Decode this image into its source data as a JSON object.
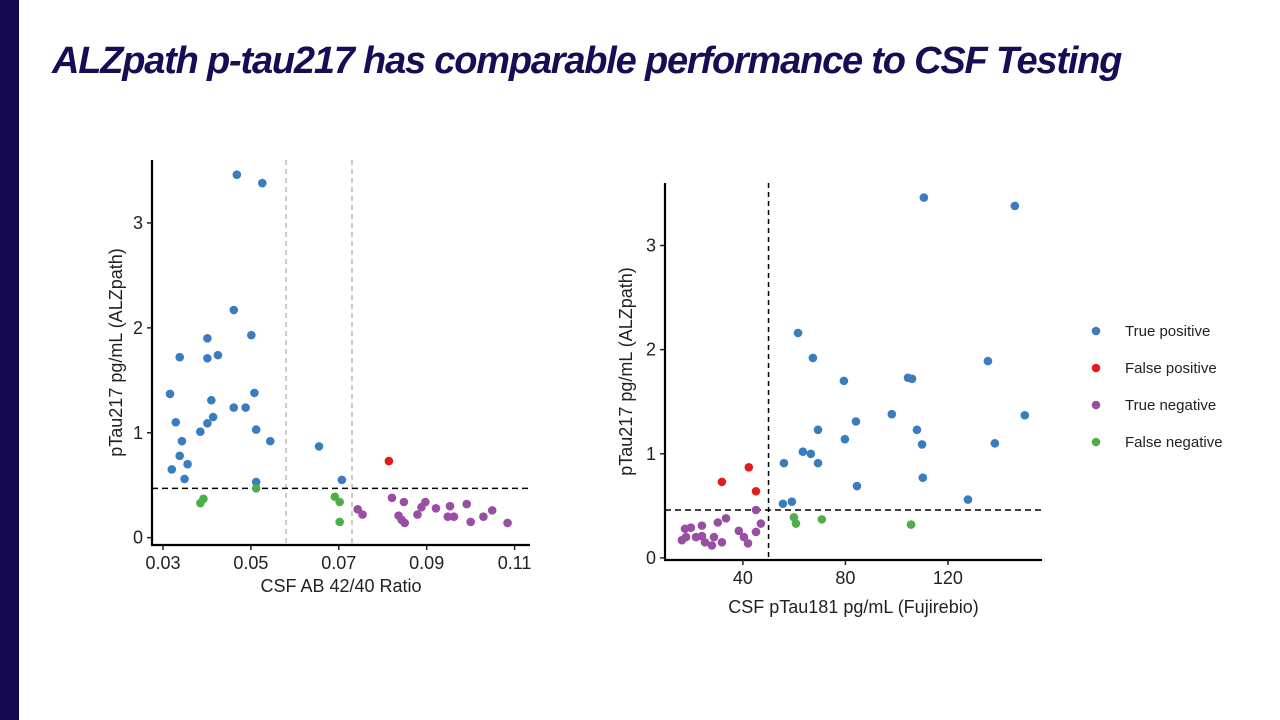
{
  "slide": {
    "title": "ALZpath p-tau217 has comparable performance  to CSF Testing"
  },
  "colors": {
    "bar": "#160a50",
    "title": "#170d55"
  },
  "legend": [
    {
      "label": "True positive",
      "color": "#3a7dbf"
    },
    {
      "label": "False positive",
      "color": "#e41a1c"
    },
    {
      "label": "True negative",
      "color": "#984ea3"
    },
    {
      "label": "False negative",
      "color": "#4daf4a"
    }
  ],
  "chart_data": [
    {
      "type": "scatter",
      "xlabel": "CSF AB 42/40 Ratio",
      "ylabel": "pTau217 pg/mL (ALZpath)",
      "xlim": [
        0.0275,
        0.1135
      ],
      "ylim": [
        -0.07,
        3.6
      ],
      "xticks": [
        "0.03",
        "0.05",
        "0.07",
        "0.09",
        "0.11"
      ],
      "xtick_values": [
        0.03,
        0.05,
        0.07,
        0.09,
        0.11
      ],
      "yticks": [
        "0",
        "1",
        "2",
        "3"
      ],
      "ytick_values": [
        0,
        1,
        2,
        3
      ],
      "hlines": [
        {
          "y": 0.47,
          "style": "dashed",
          "color": "#000000"
        }
      ],
      "vlines": [
        {
          "x": 0.058,
          "style": "dashed",
          "color": "#bbbbbb"
        },
        {
          "x": 0.073,
          "style": "dashed",
          "color": "#bbbbbb"
        }
      ],
      "series": [
        {
          "name": "True positive",
          "points": [
            [
              0.0468,
              3.46
            ],
            [
              0.0526,
              3.38
            ],
            [
              0.0461,
              2.17
            ],
            [
              0.0501,
              1.93
            ],
            [
              0.0401,
              1.9
            ],
            [
              0.0338,
              1.72
            ],
            [
              0.0401,
              1.71
            ],
            [
              0.0425,
              1.74
            ],
            [
              0.0316,
              1.37
            ],
            [
              0.0508,
              1.38
            ],
            [
              0.041,
              1.31
            ],
            [
              0.0461,
              1.24
            ],
            [
              0.0488,
              1.24
            ],
            [
              0.0414,
              1.15
            ],
            [
              0.0329,
              1.1
            ],
            [
              0.0401,
              1.09
            ],
            [
              0.0385,
              1.01
            ],
            [
              0.0512,
              1.03
            ],
            [
              0.0343,
              0.92
            ],
            [
              0.0544,
              0.92
            ],
            [
              0.0338,
              0.78
            ],
            [
              0.0356,
              0.7
            ],
            [
              0.032,
              0.65
            ],
            [
              0.0349,
              0.56
            ],
            [
              0.0512,
              0.53
            ],
            [
              0.0655,
              0.87
            ],
            [
              0.0707,
              0.55
            ]
          ]
        },
        {
          "name": "False positive",
          "points": [
            [
              0.0814,
              0.73
            ]
          ]
        },
        {
          "name": "True negative",
          "points": [
            [
              0.0743,
              0.27
            ],
            [
              0.0754,
              0.22
            ],
            [
              0.0821,
              0.38
            ],
            [
              0.0848,
              0.34
            ],
            [
              0.0836,
              0.21
            ],
            [
              0.0843,
              0.17
            ],
            [
              0.085,
              0.14
            ],
            [
              0.0879,
              0.22
            ],
            [
              0.0888,
              0.29
            ],
            [
              0.0897,
              0.34
            ],
            [
              0.0921,
              0.28
            ],
            [
              0.0953,
              0.3
            ],
            [
              0.0948,
              0.2
            ],
            [
              0.0962,
              0.2
            ],
            [
              0.0991,
              0.32
            ],
            [
              0.1,
              0.15
            ],
            [
              0.1029,
              0.2
            ],
            [
              0.1049,
              0.26
            ],
            [
              0.1084,
              0.14
            ]
          ]
        },
        {
          "name": "False negative",
          "points": [
            [
              0.0392,
              0.37
            ],
            [
              0.0385,
              0.33
            ],
            [
              0.0512,
              0.47
            ],
            [
              0.0691,
              0.39
            ],
            [
              0.0702,
              0.34
            ],
            [
              0.0702,
              0.15
            ]
          ]
        }
      ]
    },
    {
      "type": "scatter",
      "xlabel": "CSF pTau181 pg/mL (Fujirebio)",
      "ylabel": "pTau217 pg/mL (ALZpath)",
      "xlim": [
        9.6,
        156.7
      ],
      "ylim": [
        -0.02,
        3.6
      ],
      "xticks": [
        "40",
        "80",
        "120"
      ],
      "xtick_values": [
        40,
        80,
        120
      ],
      "yticks": [
        "0",
        "1",
        "2",
        "3"
      ],
      "ytick_values": [
        0,
        1,
        2,
        3
      ],
      "hlines": [
        {
          "y": 0.46,
          "style": "dashed",
          "color": "#000000"
        }
      ],
      "vlines": [
        {
          "x": 50,
          "style": "dashed",
          "color": "#000000"
        }
      ],
      "series": [
        {
          "name": "True positive",
          "points": [
            [
              110.6,
              3.46
            ],
            [
              146.1,
              3.38
            ],
            [
              61.5,
              2.16
            ],
            [
              67.3,
              1.92
            ],
            [
              135.6,
              1.89
            ],
            [
              79.4,
              1.7
            ],
            [
              104.4,
              1.73
            ],
            [
              106,
              1.72
            ],
            [
              98.1,
              1.38
            ],
            [
              150,
              1.37
            ],
            [
              84.1,
              1.31
            ],
            [
              69.3,
              1.23
            ],
            [
              107.9,
              1.23
            ],
            [
              79.8,
              1.14
            ],
            [
              109.9,
              1.09
            ],
            [
              138.3,
              1.1
            ],
            [
              63.4,
              1.02
            ],
            [
              66.5,
              1.0
            ],
            [
              56.0,
              0.91
            ],
            [
              69.3,
              0.91
            ],
            [
              110.2,
              0.77
            ],
            [
              84.5,
              0.69
            ],
            [
              127.8,
              0.56
            ],
            [
              59.1,
              0.54
            ],
            [
              55.6,
              0.52
            ]
          ]
        },
        {
          "name": "False positive",
          "points": [
            [
              31.8,
              0.73
            ],
            [
              42.3,
              0.87
            ],
            [
              45.1,
              0.64
            ]
          ]
        },
        {
          "name": "True negative",
          "points": [
            [
              45.1,
              0.46
            ],
            [
              47,
              0.33
            ],
            [
              33.4,
              0.38
            ],
            [
              30.2,
              0.34
            ],
            [
              45.1,
              0.25
            ],
            [
              38.4,
              0.26
            ],
            [
              40.4,
              0.2
            ],
            [
              42,
              0.14
            ],
            [
              31.8,
              0.15
            ],
            [
              28.7,
              0.2
            ],
            [
              27.9,
              0.12
            ],
            [
              25.2,
              0.15
            ],
            [
              24,
              0.31
            ],
            [
              24,
              0.21
            ],
            [
              21.7,
              0.2
            ],
            [
              19.7,
              0.29
            ],
            [
              17.4,
              0.28
            ],
            [
              17.8,
              0.2
            ],
            [
              16.2,
              0.17
            ]
          ]
        },
        {
          "name": "False negative",
          "points": [
            [
              59.9,
              0.39
            ],
            [
              60.7,
              0.33
            ],
            [
              70.8,
              0.37
            ],
            [
              105.6,
              0.32
            ]
          ]
        }
      ]
    }
  ]
}
